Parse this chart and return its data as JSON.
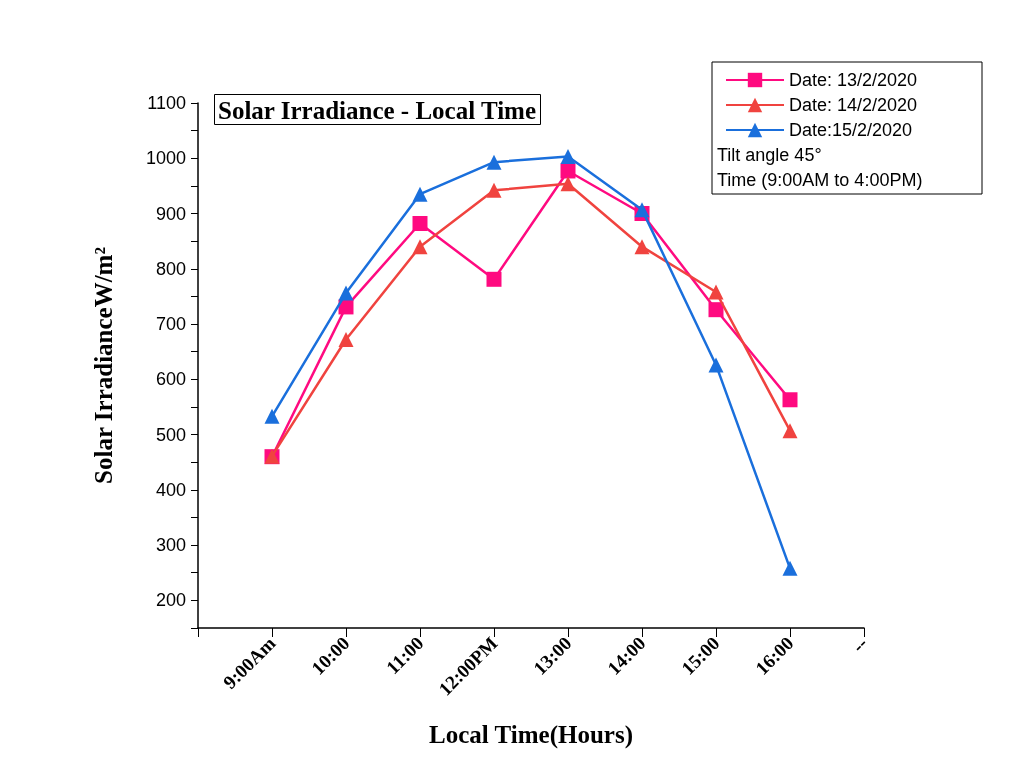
{
  "chart_data": {
    "type": "line",
    "title": "Solar Irradiance - Local Time",
    "xlabel": "Local Time(Hours)",
    "ylabel": "Solar IrradianceW/m²",
    "categories": [
      null,
      "9:00Am",
      "10:00",
      "11:00",
      "12:00PM",
      "13:00",
      "14:00",
      "15:00",
      "16:00",
      "--"
    ],
    "series": [
      {
        "name": "Date: 13/2/2020",
        "color": "#ff0a80",
        "marker": "square",
        "values": [
          null,
          460,
          731,
          882,
          781,
          977,
          900,
          726,
          563,
          null
        ]
      },
      {
        "name": "Date: 14/2/2020",
        "color": "#f0433f",
        "marker": "triangle",
        "values": [
          null,
          461,
          672,
          840,
          942,
          954,
          840,
          758,
          507,
          null
        ]
      },
      {
        "name": "Date:15/2/2020",
        "color": "#1a6fdc",
        "marker": "triangle",
        "values": [
          null,
          533,
          756,
          935,
          993,
          1003,
          907,
          626,
          258,
          null
        ]
      }
    ],
    "annotations": [
      "Tilt angle 45°",
      "Time (9:00AM to 4:00PM)"
    ],
    "ylim": [
      150,
      1100
    ],
    "yticks": [
      {
        "value": 150,
        "label": null
      },
      200,
      {
        "value": 250,
        "label": null
      },
      300,
      {
        "value": 350,
        "label": null
      },
      400,
      {
        "value": 450,
        "label": null
      },
      500,
      {
        "value": 550,
        "label": null
      },
      600,
      {
        "value": 650,
        "label": null
      },
      700,
      {
        "value": 750,
        "label": null
      },
      800,
      {
        "value": 850,
        "label": null
      },
      900,
      {
        "value": 950,
        "label": null
      },
      1000,
      {
        "value": 1050,
        "label": null
      },
      1100
    ],
    "legend": "top right",
    "grid": false,
    "line_style": "solid"
  }
}
